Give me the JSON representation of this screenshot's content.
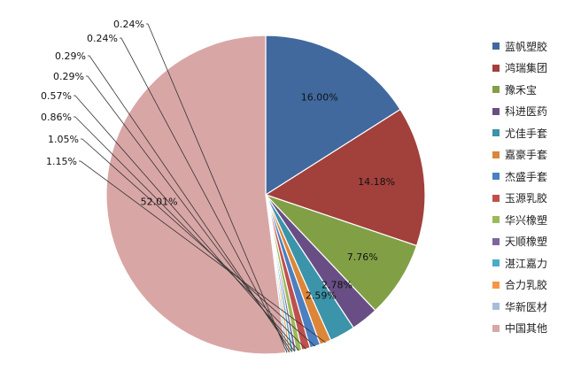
{
  "chart_data": {
    "type": "pie",
    "title": "",
    "legend_position": "right",
    "slices": [
      {
        "name": "蓝帆塑胶",
        "value": 16.0,
        "label": "16.00%",
        "color": "#41699e"
      },
      {
        "name": "鸿瑞集团",
        "value": 14.18,
        "label": "14.18%",
        "color": "#a2403c"
      },
      {
        "name": "豫禾宝",
        "value": 7.76,
        "label": "7.76%",
        "color": "#81a046"
      },
      {
        "name": "科进医药",
        "value": 2.78,
        "label": "2.78%",
        "color": "#694e86"
      },
      {
        "name": "尤佳手套",
        "value": 2.59,
        "label": "2.59%",
        "color": "#3b94a9"
      },
      {
        "name": "嘉豪手套",
        "value": 1.15,
        "label": "1.15%",
        "color": "#db8638"
      },
      {
        "name": "杰盛手套",
        "value": 1.05,
        "label": "1.05%",
        "color": "#4b7fc1"
      },
      {
        "name": "玉源乳胶",
        "value": 0.86,
        "label": "0.86%",
        "color": "#c0504d"
      },
      {
        "name": "华兴橡塑",
        "value": 0.57,
        "label": "0.57%",
        "color": "#9bbb59"
      },
      {
        "name": "天顺橡塑",
        "value": 0.29,
        "label": "0.29%",
        "color": "#8064a2"
      },
      {
        "name": "湛江嘉力",
        "value": 0.29,
        "label": "0.29%",
        "color": "#4bacc6"
      },
      {
        "name": "合力乳胶",
        "value": 0.24,
        "label": "0.24%",
        "color": "#f79646"
      },
      {
        "name": "华新医材",
        "value": 0.24,
        "label": "0.24%",
        "color": "#a9bcda"
      },
      {
        "name": "中国其他",
        "value": 52.01,
        "label": "52.01%",
        "color": "#d9a6a6"
      }
    ]
  }
}
